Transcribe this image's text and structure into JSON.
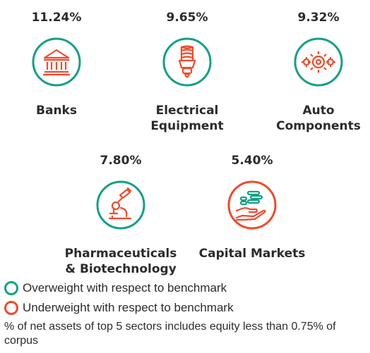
{
  "sectors": [
    {
      "name": "Banks",
      "percent": "11.24%",
      "status": "overweight",
      "icon": "bank-icon"
    },
    {
      "name": "Electrical\nEquipment",
      "percent": "9.65%",
      "status": "overweight",
      "icon": "light-bulb-icon"
    },
    {
      "name": "Auto\nComponents",
      "percent": "9.32%",
      "status": "overweight",
      "icon": "gears-icon"
    },
    {
      "name": "Pharmaceuticals\n& Biotechnology",
      "percent": "7.80%",
      "status": "overweight",
      "icon": "microscope-icon"
    },
    {
      "name": "Capital Markets",
      "percent": "5.40%",
      "status": "underweight",
      "icon": "coins-hand-icon"
    }
  ],
  "legend": {
    "overweight": "Overweight with respect to benchmark",
    "underweight": "Underweight with respect to benchmark"
  },
  "note": "% of net assets of top 5 sectors includes equity less than 0.75% of corpus",
  "colors": {
    "overweight": "#13a085",
    "underweight": "#ef4b2b",
    "text": "#2b2b2b"
  }
}
